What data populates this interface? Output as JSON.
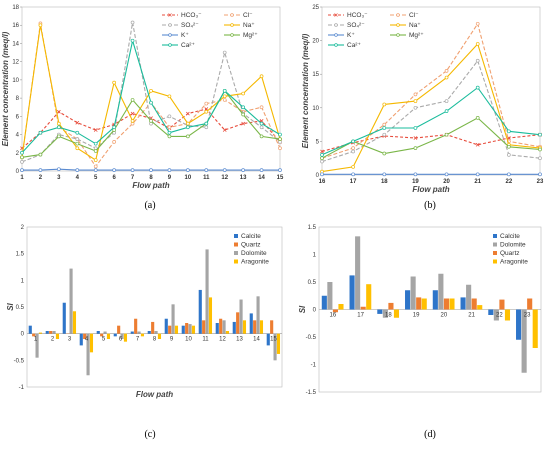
{
  "panels": [
    "(a)",
    "(b)",
    "(c)",
    "(d)"
  ],
  "chart_data": [
    {
      "type": "line",
      "id": "a",
      "panel_label": "(a)",
      "xlabel": "Flow path",
      "ylabel": "Element concentration (meq/l)",
      "x": [
        1,
        2,
        3,
        4,
        5,
        6,
        7,
        8,
        9,
        10,
        11,
        12,
        13,
        14,
        15
      ],
      "xlim": [
        1,
        15
      ],
      "ylim": [
        0,
        18
      ],
      "yticks": [
        0,
        2,
        4,
        6,
        8,
        10,
        12,
        14,
        16,
        18
      ],
      "legend": "top-right",
      "series": [
        {
          "name": "HCO₃⁻",
          "color": "#e74c3c",
          "dash": "3,2",
          "marker": "cross",
          "values": [
            2.5,
            4.2,
            6.5,
            5.3,
            4.5,
            5.1,
            6.3,
            5.8,
            4.7,
            6.3,
            6.8,
            4.5,
            5.2,
            5.5,
            3.2
          ]
        },
        {
          "name": "Cl⁻",
          "color": "#f0a070",
          "dash": "4,2",
          "marker": "circle",
          "values": [
            1.5,
            16.2,
            4.8,
            3.5,
            0.5,
            3.2,
            5.2,
            7.5,
            4.8,
            5.2,
            7.4,
            7.8,
            6.5,
            7.0,
            2.5
          ]
        },
        {
          "name": "SO₄²⁻",
          "color": "#aaaaaa",
          "dash": "4,2",
          "marker": "circle",
          "values": [
            1.0,
            1.8,
            4.0,
            3.5,
            2.5,
            4.2,
            16.3,
            5.2,
            6.0,
            5.0,
            4.8,
            13.0,
            6.3,
            4.8,
            3.2
          ]
        },
        {
          "name": "Na⁺",
          "color": "#f5b800",
          "dash": "",
          "marker": "circle",
          "values": [
            1.5,
            16.0,
            5.2,
            2.5,
            1.2,
            9.7,
            5.5,
            8.8,
            8.2,
            5.2,
            6.5,
            8.2,
            8.5,
            10.4,
            3.5
          ]
        },
        {
          "name": "K⁺",
          "color": "#5b8bd0",
          "dash": "",
          "marker": "circle",
          "values": [
            0.1,
            0.1,
            0.2,
            0.1,
            0.1,
            0.1,
            0.1,
            0.1,
            0.1,
            0.1,
            0.1,
            0.1,
            0.1,
            0.1,
            0.1
          ]
        },
        {
          "name": "Mg²⁺",
          "color": "#7ab648",
          "dash": "",
          "marker": "circle",
          "values": [
            1.5,
            1.8,
            3.8,
            3.0,
            2.2,
            4.5,
            7.8,
            5.5,
            3.8,
            3.8,
            5.2,
            8.8,
            6.2,
            3.8,
            3.5
          ]
        },
        {
          "name": "Ca²⁺",
          "color": "#1abc9c",
          "dash": "",
          "marker": "circle",
          "values": [
            2.0,
            4.2,
            4.8,
            4.2,
            3.0,
            4.8,
            14.3,
            7.5,
            4.2,
            4.8,
            5.2,
            8.8,
            7.0,
            5.2,
            4.0
          ]
        }
      ]
    },
    {
      "type": "line",
      "id": "b",
      "panel_label": "(b)",
      "xlabel": "Flow path",
      "ylabel": "Element concentration (meq/l)",
      "x": [
        16,
        17,
        18,
        19,
        20,
        21,
        22,
        23
      ],
      "xlim": [
        16,
        23
      ],
      "ylim": [
        0,
        25
      ],
      "yticks": [
        0,
        5,
        10,
        15,
        20,
        25
      ],
      "legend": "top-left",
      "series": [
        {
          "name": "HCO₃⁻",
          "color": "#e74c3c",
          "dash": "3,2",
          "marker": "cross",
          "values": [
            3.5,
            4.8,
            5.8,
            5.5,
            6.0,
            4.5,
            5.5,
            6.0
          ]
        },
        {
          "name": "Cl⁻",
          "color": "#f0a070",
          "dash": "4,2",
          "marker": "circle",
          "values": [
            2.5,
            4.0,
            7.5,
            12.0,
            15.5,
            22.5,
            5.0,
            4.2
          ]
        },
        {
          "name": "SO₄²⁻",
          "color": "#aaaaaa",
          "dash": "4,2",
          "marker": "circle",
          "values": [
            2.0,
            3.5,
            6.0,
            10.0,
            11.0,
            17.0,
            3.0,
            2.5
          ]
        },
        {
          "name": "Na⁺",
          "color": "#f5b800",
          "dash": "",
          "marker": "circle",
          "values": [
            0.5,
            1.2,
            10.5,
            11.0,
            14.5,
            19.5,
            4.5,
            4.0
          ]
        },
        {
          "name": "K⁺",
          "color": "#5b8bd0",
          "dash": "",
          "marker": "circle",
          "values": [
            0.1,
            0.1,
            0.1,
            0.1,
            0.1,
            0.1,
            0.1,
            0.1
          ]
        },
        {
          "name": "Mg²⁺",
          "color": "#7ab648",
          "dash": "",
          "marker": "circle",
          "values": [
            2.5,
            5.0,
            3.2,
            4.0,
            6.0,
            8.5,
            4.2,
            3.8
          ]
        },
        {
          "name": "Ca²⁺",
          "color": "#1abc9c",
          "dash": "",
          "marker": "circle",
          "values": [
            3.0,
            5.0,
            7.0,
            7.0,
            9.5,
            13.0,
            6.5,
            6.0
          ]
        }
      ]
    },
    {
      "type": "bar",
      "id": "c",
      "panel_label": "(c)",
      "xlabel": "Flow path",
      "ylabel": "SI",
      "categories": [
        "1",
        "2",
        "3",
        "4",
        "5",
        "6",
        "7",
        "8",
        "9",
        "10",
        "11",
        "12",
        "13",
        "14",
        "15"
      ],
      "ylim": [
        -1,
        2
      ],
      "yticks": [
        -1,
        -0.5,
        0,
        0.5,
        1,
        1.5,
        2
      ],
      "legend": "top-right",
      "series": [
        {
          "name": "Calcite",
          "color": "#2e75c9",
          "values": [
            0.15,
            0.05,
            0.58,
            -0.22,
            0.05,
            -0.05,
            0.04,
            0.05,
            0.28,
            0.15,
            0.82,
            0.2,
            0.22,
            0.38,
            -0.22
          ]
        },
        {
          "name": "Quartz",
          "color": "#ed7d31",
          "values": [
            -0.05,
            0.05,
            0.0,
            -0.1,
            -0.05,
            0.15,
            0.28,
            0.22,
            0.15,
            0.2,
            0.25,
            0.28,
            0.4,
            0.25,
            0.25
          ]
        },
        {
          "name": "Dolomite",
          "color": "#a5a5a5",
          "values": [
            -0.45,
            0.05,
            1.22,
            -0.78,
            0.04,
            -0.1,
            0.04,
            0.05,
            0.55,
            0.18,
            1.58,
            0.25,
            0.64,
            0.7,
            -0.5
          ]
        },
        {
          "name": "Aragonite",
          "color": "#ffc000",
          "values": [
            0.02,
            -0.1,
            0.42,
            -0.35,
            -0.1,
            -0.15,
            -0.05,
            -0.1,
            0.15,
            0.15,
            0.68,
            0.05,
            0.25,
            0.25,
            -0.38
          ]
        }
      ]
    },
    {
      "type": "bar",
      "id": "d",
      "panel_label": "(d)",
      "xlabel": "",
      "ylabel": "SI",
      "categories": [
        "16",
        "17",
        "18",
        "19",
        "20",
        "21",
        "22",
        "23"
      ],
      "ylim": [
        -1.5,
        1.5
      ],
      "yticks": [
        -1.5,
        -1,
        -0.5,
        0,
        0.5,
        1,
        1.5
      ],
      "legend": "top-right",
      "series": [
        {
          "name": "Calcite",
          "color": "#2e75c9",
          "values": [
            0.25,
            0.62,
            -0.08,
            0.35,
            0.35,
            0.22,
            -0.1,
            -0.55
          ]
        },
        {
          "name": "Dolomite",
          "color": "#a5a5a5",
          "values": [
            0.5,
            1.33,
            -0.15,
            0.6,
            0.65,
            0.45,
            -0.2,
            -1.15
          ]
        },
        {
          "name": "Quartz",
          "color": "#ed7d31",
          "values": [
            -0.05,
            0.05,
            0.12,
            0.22,
            0.2,
            0.2,
            0.18,
            0.2
          ]
        },
        {
          "name": "Aragonite",
          "color": "#ffc000",
          "values": [
            0.1,
            0.46,
            -0.15,
            0.2,
            0.2,
            0.08,
            -0.2,
            -0.7
          ]
        }
      ]
    }
  ]
}
